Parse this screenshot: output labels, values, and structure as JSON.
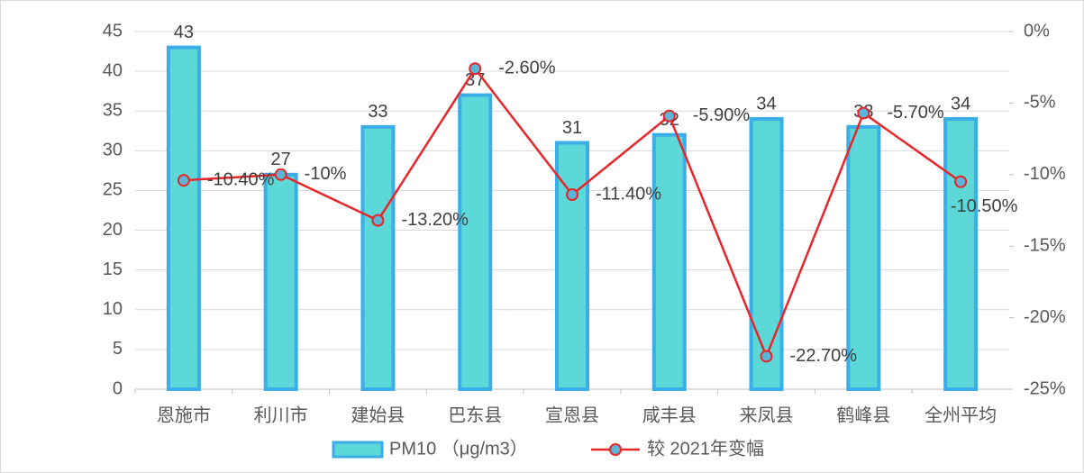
{
  "chart_data": {
    "type": "combo",
    "categories": [
      "恩施市",
      "利川市",
      "建始县",
      "巴东县",
      "宣恩县",
      "咸丰县",
      "来凤县",
      "鹤峰县",
      "全州平均"
    ],
    "series": [
      {
        "name": "PM10 （μg/m3）",
        "type": "bar",
        "color": "#5dd8d8",
        "values": [
          43,
          27,
          33,
          37,
          31,
          32,
          34,
          33,
          34
        ]
      },
      {
        "name": "较 2021年变幅",
        "type": "line",
        "axis": "y2",
        "color": "#e8262a",
        "values": [
          -10.4,
          -10,
          -13.2,
          -2.6,
          -11.4,
          -5.9,
          -22.7,
          -5.7,
          -10.5
        ],
        "value_labels": [
          "-10.40%",
          "-10%",
          "-13.20%",
          "-2.60%",
          "-11.40%",
          "-5.90%",
          "-22.70%",
          "-5.70%",
          "-10.50%"
        ]
      }
    ],
    "ylim": [
      0,
      45
    ],
    "yticks": [
      0,
      5,
      10,
      15,
      20,
      25,
      30,
      35,
      40,
      45
    ],
    "y2lim": [
      -25,
      0
    ],
    "y2ticks": [
      {
        "value": -25,
        "label": "-25%"
      },
      {
        "value": -20,
        "label": "-20%"
      },
      {
        "value": -15,
        "label": "-15%"
      },
      {
        "value": -10,
        "label": "-10%"
      },
      {
        "value": -5,
        "label": "-5%"
      },
      {
        "value": 0,
        "label": "0%"
      }
    ],
    "grid": true,
    "legend": "bottom"
  }
}
